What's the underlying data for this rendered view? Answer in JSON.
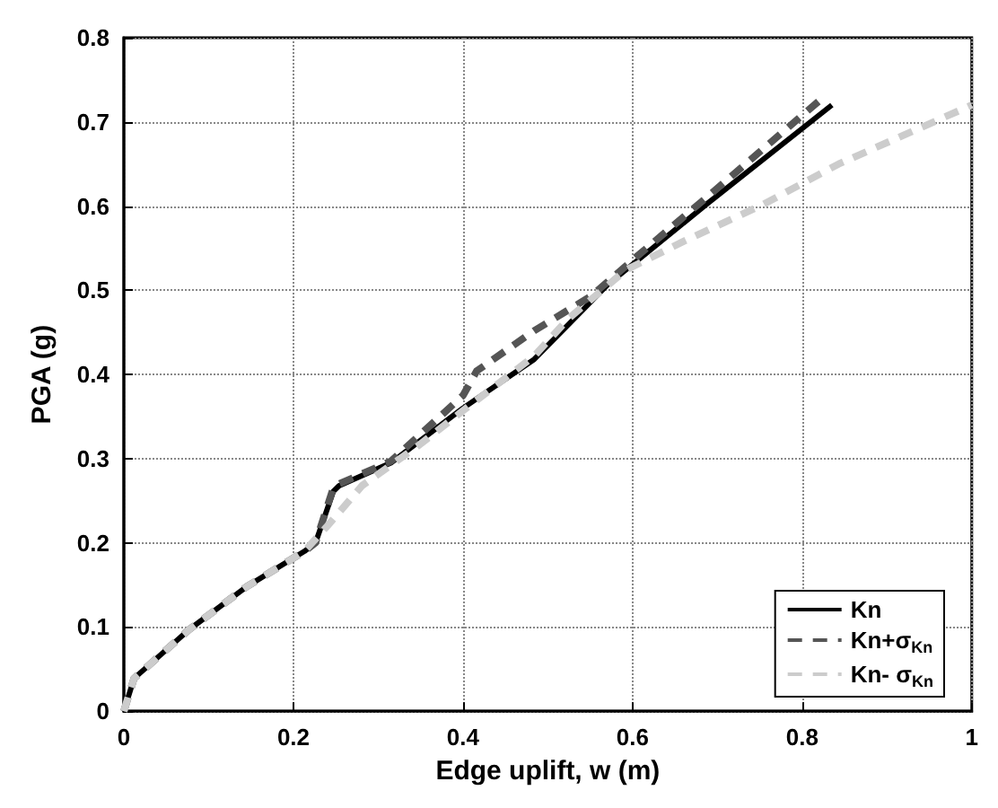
{
  "chart_data": {
    "type": "line",
    "xlabel": "Edge uplift, w (m)",
    "ylabel": "PGA (g)",
    "xlim": [
      0,
      1
    ],
    "xticks": [
      0,
      0.2,
      0.4,
      0.6,
      0.8,
      1
    ],
    "ylim": [
      0,
      0.8
    ],
    "yticks": [
      0,
      0.1,
      0.2,
      0.3,
      0.4,
      0.5,
      0.6,
      0.7,
      0.8
    ],
    "grid": true,
    "legend": "bottom right",
    "marker": "none",
    "series": [
      {
        "name": "Kn",
        "color": "#000000",
        "line_style": "solid",
        "x": [
          0,
          0.012,
          0.077,
          0.145,
          0.213,
          0.226,
          0.247,
          0.254,
          0.315,
          0.4,
          0.484,
          0.571,
          0.687,
          0.835
        ],
        "values": [
          0,
          0.039,
          0.097,
          0.148,
          0.19,
          0.2,
          0.261,
          0.268,
          0.295,
          0.36,
          0.418,
          0.507,
          0.602,
          0.72
        ]
      },
      {
        "name": "Kn+σ$_{Kn}$",
        "color": "#555555",
        "line_style": "dashed",
        "x": [
          0,
          0.012,
          0.077,
          0.145,
          0.213,
          0.226,
          0.247,
          0.254,
          0.315,
          0.4,
          0.416,
          0.484,
          0.551,
          0.606,
          0.687,
          0.82
        ],
        "values": [
          0,
          0.039,
          0.097,
          0.148,
          0.19,
          0.2,
          0.265,
          0.27,
          0.297,
          0.375,
          0.404,
          0.452,
          0.493,
          0.541,
          0.61,
          0.725
        ]
      },
      {
        "name": "Kn- σ$_{Kn}$",
        "color": "#cccccc",
        "line_style": "dashed",
        "x": [
          0,
          0.012,
          0.077,
          0.145,
          0.213,
          0.24,
          0.281,
          0.348,
          0.4,
          0.484,
          0.524,
          0.592,
          0.66,
          0.754,
          0.843,
          1
        ],
        "values": [
          0,
          0.039,
          0.097,
          0.148,
          0.19,
          0.22,
          0.268,
          0.316,
          0.357,
          0.422,
          0.466,
          0.524,
          0.558,
          0.602,
          0.65,
          0.72
        ]
      }
    ]
  }
}
